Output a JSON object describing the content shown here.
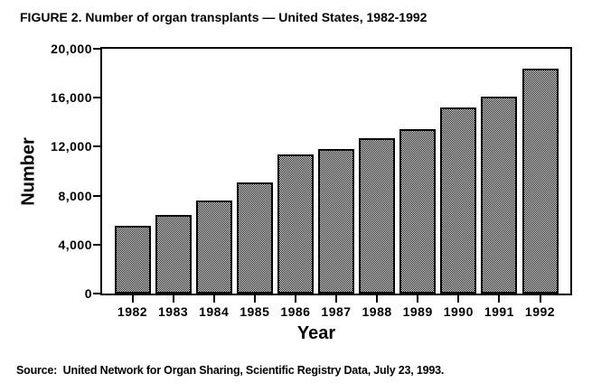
{
  "chart_data": {
    "type": "bar",
    "title": "FIGURE 2. Number of organ transplants — United States, 1982-1992",
    "categories": [
      "1982",
      "1983",
      "1984",
      "1985",
      "1986",
      "1987",
      "1988",
      "1989",
      "1990",
      "1991",
      "1992"
    ],
    "values": [
      5500,
      6400,
      7600,
      9100,
      11400,
      11800,
      12700,
      13400,
      15200,
      16100,
      18400
    ],
    "xlabel": "Year",
    "ylabel": "Number",
    "ylim": [
      0,
      20000
    ],
    "y_ticks": [
      {
        "value": 0,
        "label": "0"
      },
      {
        "value": 4000,
        "label": "4,000"
      },
      {
        "value": 8000,
        "label": "8,000"
      },
      {
        "value": 12000,
        "label": "12,000"
      },
      {
        "value": 16000,
        "label": "16,000"
      },
      {
        "value": 20000,
        "label": "20,000"
      }
    ],
    "grid": false,
    "legend": null,
    "bar_style": {
      "fill_pattern": "checkerboard-dither",
      "pattern_colors": [
        "#000000",
        "#ffffff"
      ],
      "border_color": "#000000"
    },
    "colors": {
      "text": "#000000",
      "axis": "#000000",
      "background": "#ffffff"
    },
    "source_note": "Source:  United Network for Organ Sharing, Scientific Registry Data, July 23, 1993."
  }
}
